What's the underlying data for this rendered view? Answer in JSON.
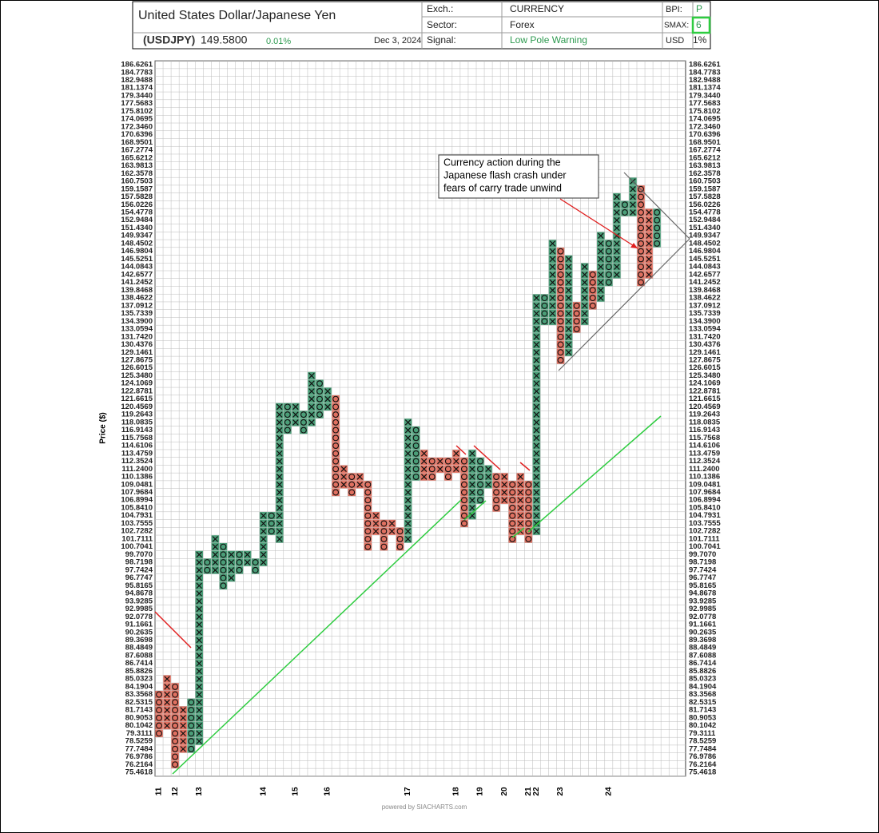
{
  "header": {
    "title": "United States Dollar/Japanese Yen",
    "symbol": "(USDJPY)",
    "price": "149.5800",
    "change": "0.01%",
    "date": "Dec 3, 2024",
    "exch_label": "Exch.:",
    "exch": "CURRENCY",
    "sector_label": "Sector:",
    "sector": "Forex",
    "signal_label": "Signal:",
    "signal": "Low Pole Warning",
    "bpi_label": "BPI:",
    "bpi": "P",
    "smax_label": "SMAX:",
    "smax": "6",
    "usd_label": "USD",
    "usd": "1%"
  },
  "chart_data": {
    "type": "point-and-figure",
    "y_label": "Price ($)",
    "log_scale": true,
    "grid": true,
    "annotation": [
      "Currency action during the",
      "Japanese flash crash under",
      "fears of carry trade unwind"
    ],
    "footer": "powered by SIACHARTS.com",
    "ylim": [
      75.4618,
      186.6261
    ],
    "yticks": [
      186.6261,
      184.7783,
      182.9488,
      181.1374,
      {
        "value": 179.344,
        "label": "179.3440"
      },
      177.5683,
      175.8102,
      174.0695,
      {
        "value": 172.346,
        "label": "172.3460"
      },
      170.6396,
      168.9501,
      167.2774,
      165.6212,
      163.9813,
      162.3578,
      160.7503,
      159.1587,
      157.5828,
      156.0226,
      154.4778,
      152.9484,
      {
        "value": 151.434,
        "label": "151.4340"
      },
      149.9347,
      148.4502,
      146.9804,
      145.5251,
      144.0843,
      142.6577,
      141.2452,
      139.8468,
      138.4622,
      137.0912,
      135.7339,
      {
        "value": 134.39,
        "label": "134.3900"
      },
      133.0594,
      {
        "value": 131.742,
        "label": "131.7420"
      },
      130.4376,
      129.1461,
      127.8675,
      126.6015,
      {
        "value": 125.348,
        "label": "125.3480"
      },
      124.1069,
      122.8781,
      121.6615,
      120.4569,
      119.2643,
      118.0835,
      116.9143,
      115.7568,
      114.6106,
      113.4759,
      112.3524,
      {
        "value": 111.24,
        "label": "111.2400"
      },
      110.1386,
      109.0481,
      107.9684,
      106.8994,
      {
        "value": 105.841,
        "label": "105.8410"
      },
      104.7931,
      103.7555,
      102.7282,
      101.7111,
      100.7041,
      {
        "value": 99.707,
        "label": "99.7070"
      },
      98.7198,
      97.7424,
      96.7747,
      95.8165,
      94.8678,
      93.9285,
      92.9985,
      92.0778,
      91.1661,
      90.2635,
      89.3698,
      88.4849,
      87.6088,
      86.7414,
      85.8826,
      85.0323,
      84.1904,
      83.3568,
      82.5315,
      81.7143,
      80.9053,
      80.1042,
      79.3111,
      78.5259,
      77.7484,
      76.9786,
      76.2164,
      75.4618
    ],
    "columns": [
      {
        "type": "O",
        "low": 79.3111,
        "high": 83.3568,
        "color": "#e07060",
        "year": "11"
      },
      {
        "type": "X",
        "low": 80.1042,
        "high": 85.0323,
        "color": "#e07060"
      },
      {
        "type": "O",
        "low": 76.2164,
        "high": 84.1904,
        "color": "#e07060",
        "year": "12"
      },
      {
        "type": "X",
        "low": 77.7484,
        "high": 81.7143,
        "color": "#e07060"
      },
      {
        "type": "O",
        "low": 77.7484,
        "high": 82.5315,
        "color": "#4a9e78"
      },
      {
        "type": "X",
        "low": 78.5259,
        "high": 99.707,
        "color": "#4a9e78",
        "year": "13"
      },
      {
        "type": "O",
        "low": 97.7424,
        "high": 98.7198,
        "color": "#4a9e78"
      },
      {
        "type": "X",
        "low": 97.7424,
        "high": 101.7111,
        "color": "#4a9e78"
      },
      {
        "type": "O",
        "low": 95.8165,
        "high": 100.7041,
        "color": "#4a9e78"
      },
      {
        "type": "X",
        "low": 96.7747,
        "high": 99.707,
        "color": "#4a9e78"
      },
      {
        "type": "O",
        "low": 97.7424,
        "high": 99.707,
        "color": "#4a9e78"
      },
      {
        "type": "X",
        "low": 98.7198,
        "high": 99.707,
        "color": "#4a9e78"
      },
      {
        "type": "O",
        "low": 97.7424,
        "high": 98.7198,
        "color": "#4a9e78"
      },
      {
        "type": "X",
        "low": 98.7198,
        "high": 104.7931,
        "color": "#4a9e78",
        "year": "14"
      },
      {
        "type": "O",
        "low": 102.7282,
        "high": 104.7931,
        "color": "#4a9e78"
      },
      {
        "type": "X",
        "low": 101.7111,
        "high": 120.4569,
        "color": "#4a9e78"
      },
      {
        "type": "O",
        "low": 116.9143,
        "high": 120.4569,
        "color": "#4a9e78"
      },
      {
        "type": "X",
        "low": 118.0835,
        "high": 120.4569,
        "color": "#4a9e78",
        "year": "15"
      },
      {
        "type": "O",
        "low": 116.9143,
        "high": 119.2643,
        "color": "#4a9e78"
      },
      {
        "type": "X",
        "low": 118.0835,
        "high": 125.348,
        "color": "#4a9e78"
      },
      {
        "type": "O",
        "low": 119.2643,
        "high": 124.1069,
        "color": "#4a9e78"
      },
      {
        "type": "X",
        "low": 120.4569,
        "high": 122.8781,
        "color": "#4a9e78",
        "year": "16"
      },
      {
        "type": "O",
        "low": 107.9684,
        "high": 121.6615,
        "color": "#e07060"
      },
      {
        "type": "X",
        "low": 109.0481,
        "high": 111.24,
        "color": "#e07060"
      },
      {
        "type": "O",
        "low": 107.9684,
        "high": 110.1386,
        "color": "#e07060"
      },
      {
        "type": "X",
        "low": 109.0481,
        "high": 110.1386,
        "color": "#e07060"
      },
      {
        "type": "O",
        "low": 100.7041,
        "high": 109.0481,
        "color": "#e07060"
      },
      {
        "type": "X",
        "low": 102.7282,
        "high": 104.7931,
        "color": "#e07060"
      },
      {
        "type": "O",
        "low": 100.7041,
        "high": 103.7555,
        "color": "#e07060"
      },
      {
        "type": "X",
        "low": 102.7282,
        "high": 103.7555,
        "color": "#e07060"
      },
      {
        "type": "O",
        "low": 100.7041,
        "high": 102.7282,
        "color": "#e07060"
      },
      {
        "type": "X",
        "low": 101.7111,
        "high": 118.0835,
        "color": "#4a9e78",
        "year": "17"
      },
      {
        "type": "O",
        "low": 110.1386,
        "high": 116.9143,
        "color": "#4a9e78"
      },
      {
        "type": "X",
        "low": 110.1386,
        "high": 113.4759,
        "color": "#e07060"
      },
      {
        "type": "O",
        "low": 110.1386,
        "high": 112.3524,
        "color": "#e07060"
      },
      {
        "type": "X",
        "low": 111.24,
        "high": 112.3524,
        "color": "#e07060"
      },
      {
        "type": "O",
        "low": 110.1386,
        "high": 112.3524,
        "color": "#e07060"
      },
      {
        "type": "X",
        "low": 111.24,
        "high": 113.4759,
        "color": "#e07060",
        "year": "18"
      },
      {
        "type": "O",
        "low": 103.7555,
        "high": 112.3524,
        "color": "#e07060"
      },
      {
        "type": "X",
        "low": 104.7931,
        "high": 113.4759,
        "color": "#4a9e78"
      },
      {
        "type": "O",
        "low": 106.8994,
        "high": 112.3524,
        "color": "#4a9e78",
        "year": "19"
      },
      {
        "type": "X",
        "low": 109.0481,
        "high": 111.24,
        "color": "#4a9e78"
      },
      {
        "type": "O",
        "low": 105.841,
        "high": 110.1386,
        "color": "#e07060"
      },
      {
        "type": "X",
        "low": 106.8994,
        "high": 110.1386,
        "color": "#e07060",
        "year": "20"
      },
      {
        "type": "O",
        "low": 101.7111,
        "high": 109.0481,
        "color": "#e07060"
      },
      {
        "type": "X",
        "low": 102.7282,
        "high": 110.1386,
        "color": "#e07060"
      },
      {
        "type": "O",
        "low": 101.7111,
        "high": 109.0481,
        "color": "#e07060",
        "year": "21"
      },
      {
        "type": "X",
        "low": 102.7282,
        "high": 138.4622,
        "color": "#4a9e78",
        "year": "22"
      },
      {
        "type": "O",
        "low": 134.39,
        "high": 138.4622,
        "color": "#4a9e78"
      },
      {
        "type": "X",
        "low": 134.39,
        "high": 148.4502,
        "color": "#4a9e78"
      },
      {
        "type": "O",
        "low": 127.8675,
        "high": 146.9804,
        "color": "#e07060",
        "year": "23"
      },
      {
        "type": "X",
        "low": 129.1461,
        "high": 145.5251,
        "color": "#4a9e78"
      },
      {
        "type": "O",
        "low": 133.0594,
        "high": 137.0912,
        "color": "#e07060"
      },
      {
        "type": "X",
        "low": 134.39,
        "high": 144.0843,
        "color": "#4a9e78"
      },
      {
        "type": "O",
        "low": 137.0912,
        "high": 142.6577,
        "color": "#e07060"
      },
      {
        "type": "X",
        "low": 138.4622,
        "high": 149.9347,
        "color": "#4a9e78"
      },
      {
        "type": "O",
        "low": 141.2452,
        "high": 148.4502,
        "color": "#4a9e78",
        "year": "24"
      },
      {
        "type": "X",
        "low": 142.6577,
        "high": 157.5828,
        "color": "#4a9e78"
      },
      {
        "type": "O",
        "low": 154.4778,
        "high": 156.0226,
        "color": "#4a9e78"
      },
      {
        "type": "X",
        "low": 154.4778,
        "high": 160.7503,
        "color": "#4a9e78"
      },
      {
        "type": "O",
        "low": 141.2452,
        "high": 159.1587,
        "color": "#e07060"
      },
      {
        "type": "X",
        "low": 142.6577,
        "high": 154.4778,
        "color": "#e07060"
      },
      {
        "type": "O",
        "low": 148.4502,
        "high": 154.4778,
        "color": "#4a9e78"
      }
    ]
  }
}
